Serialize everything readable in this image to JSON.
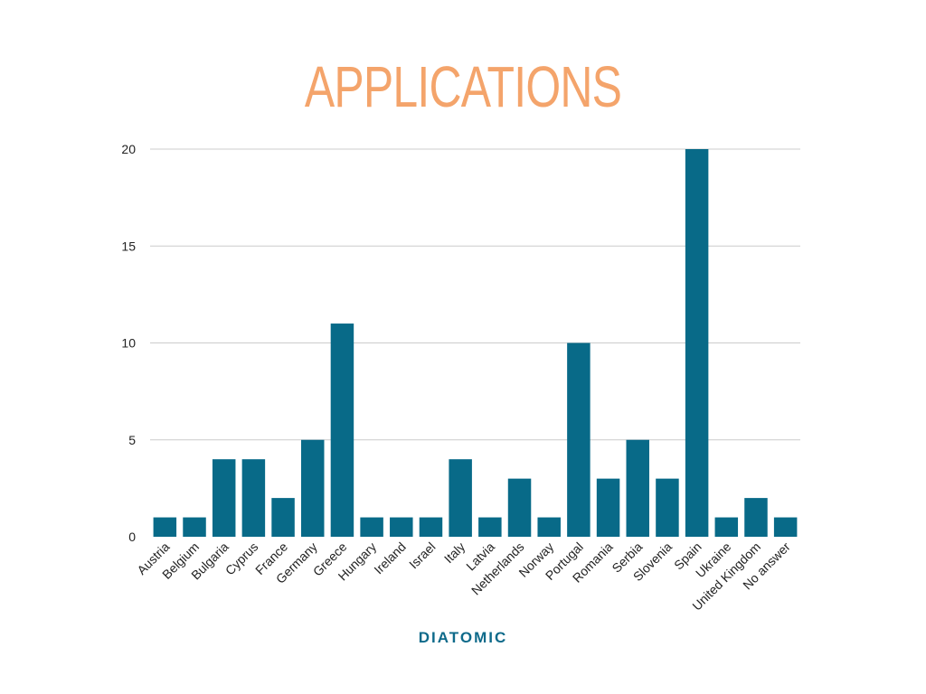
{
  "chart_data": {
    "type": "bar",
    "title": "APPLICATIONS",
    "xlabel": "DIATOMIC",
    "ylabel": "",
    "ylim": [
      0,
      20
    ],
    "yticks": [
      0,
      5,
      10,
      15,
      20
    ],
    "grid": true,
    "categories": [
      "Austria",
      "Belgium",
      "Bulgaria",
      "Cyprus",
      "France",
      "Germany",
      "Greece",
      "Hungary",
      "Ireland",
      "Israel",
      "Italy",
      "Latvia",
      "Netherlands",
      "Norway",
      "Portugal",
      "Romania",
      "Serbia",
      "Slovenia",
      "Spain",
      "Ukraine",
      "United Kingdom",
      "No answer"
    ],
    "values": [
      1,
      1,
      4,
      4,
      2,
      5,
      11,
      1,
      1,
      1,
      4,
      1,
      3,
      1,
      10,
      3,
      5,
      3,
      20,
      1,
      2,
      1
    ],
    "colors": {
      "bar": "#086a88",
      "title": "#f4a46b",
      "xlabel": "#0e6a8a",
      "grid": "#cccccc"
    }
  }
}
